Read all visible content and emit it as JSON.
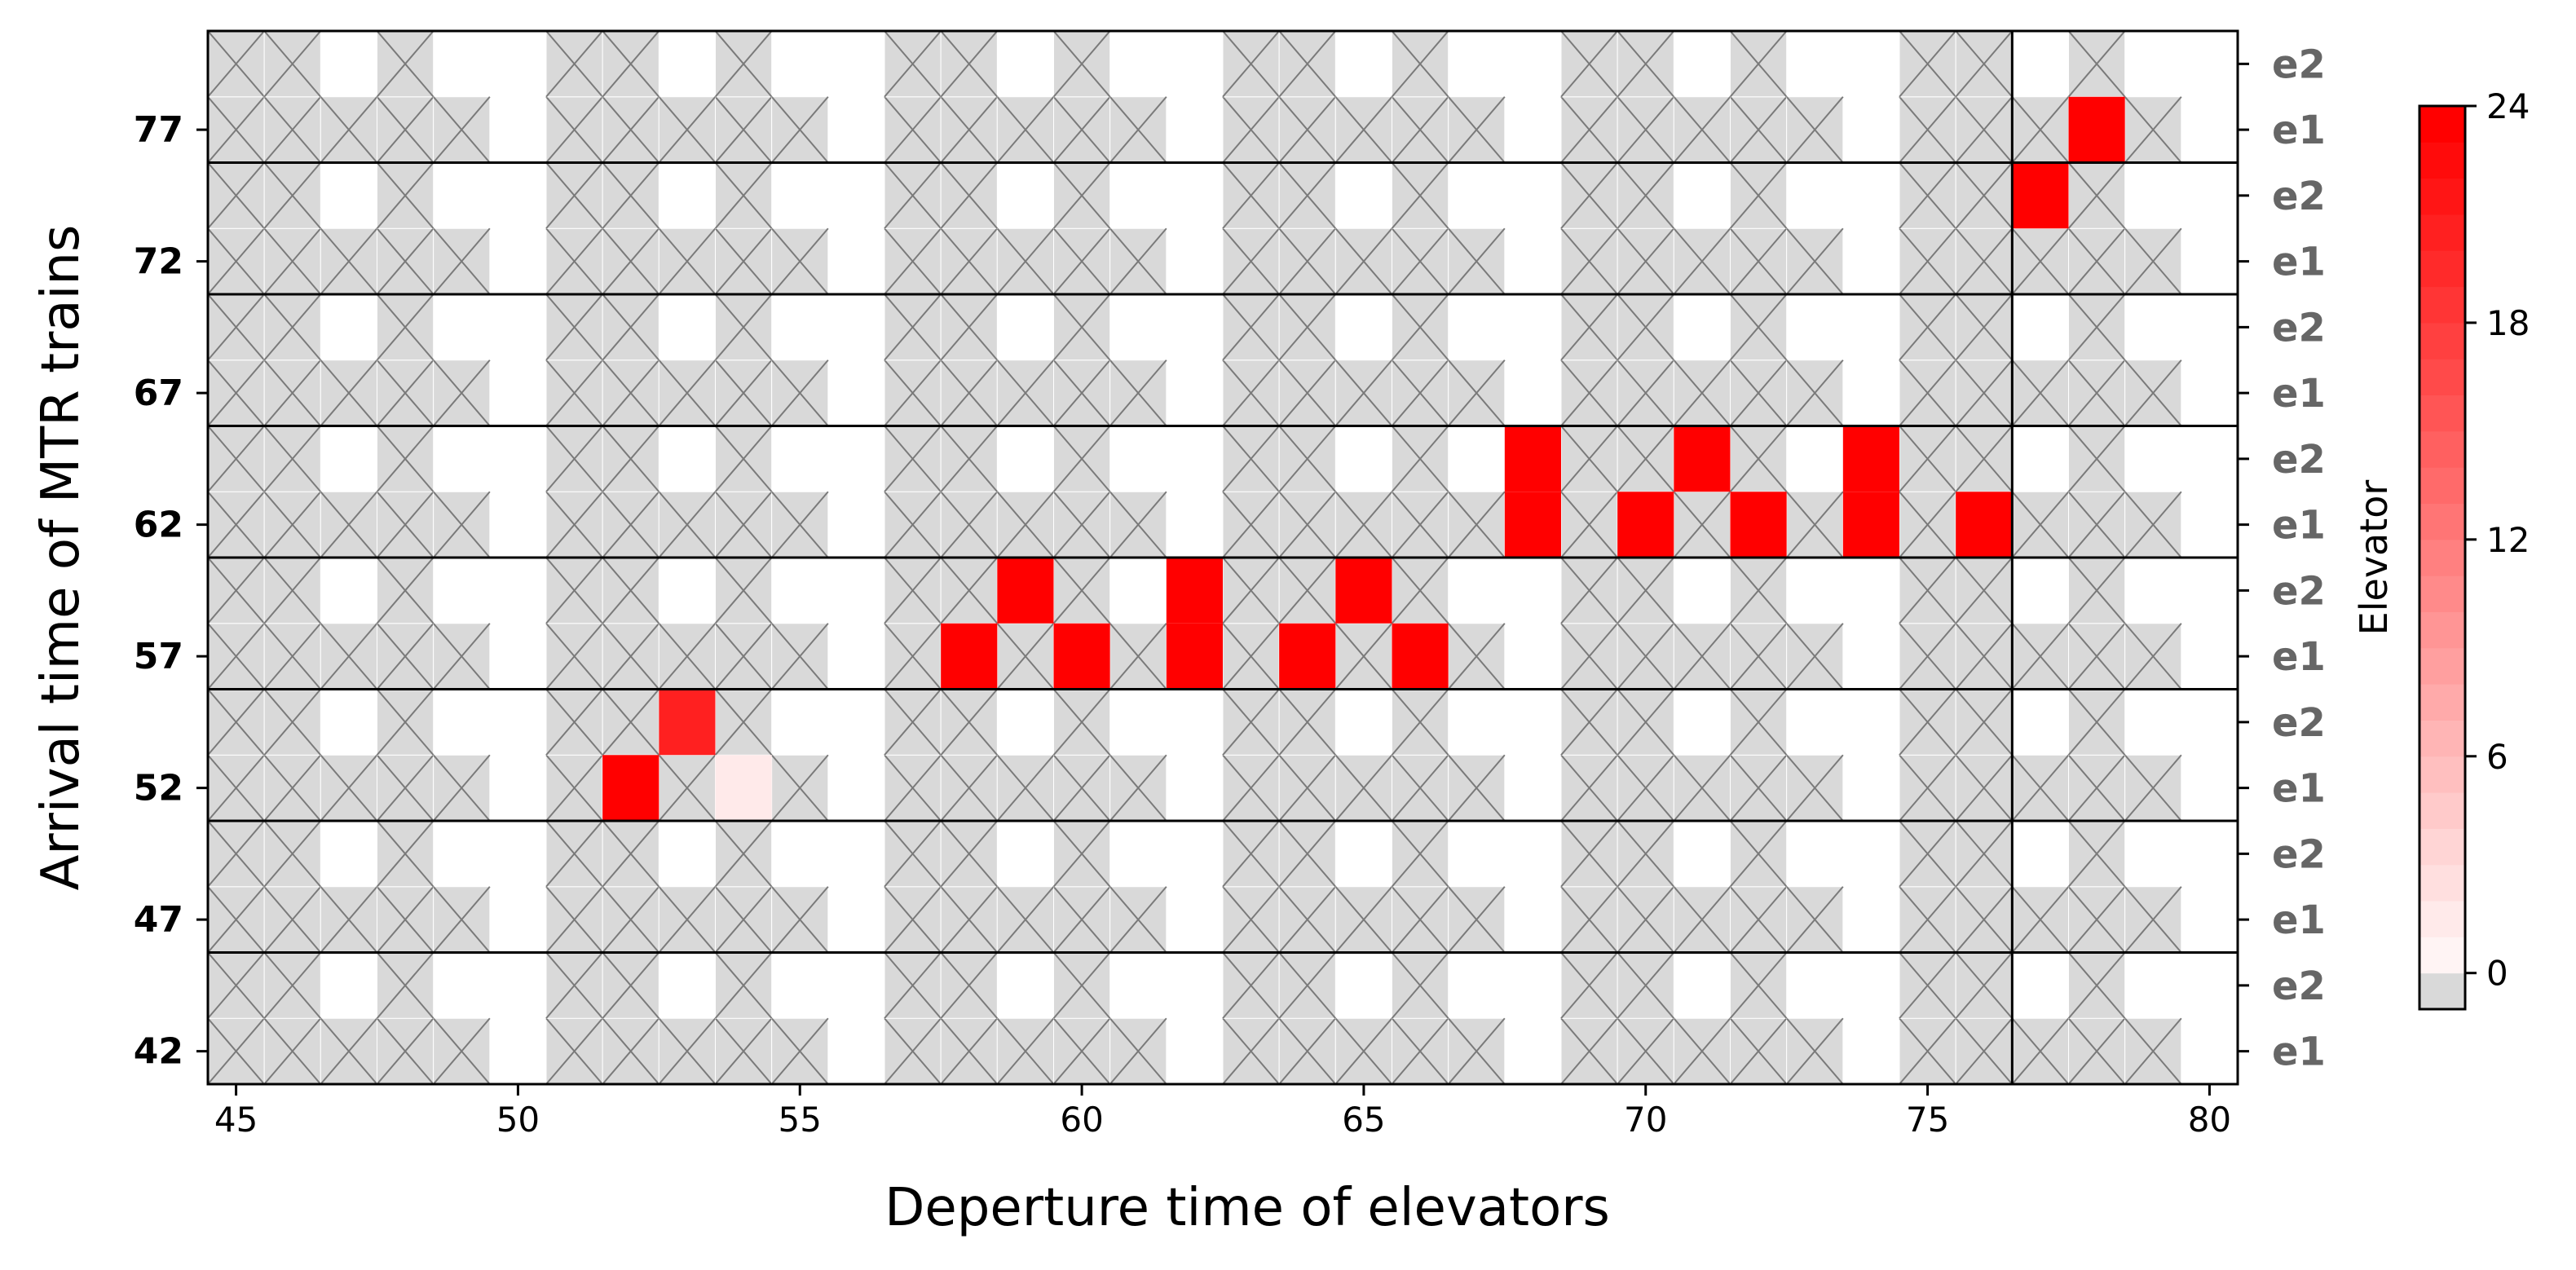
{
  "chart_data": {
    "type": "heatmap",
    "xlabel": "Deperture time of elevators",
    "ylabel": "Arrival time of MTR trains",
    "x_range": [
      44.5,
      80.5
    ],
    "x_ticks": [
      "45",
      "50",
      "55",
      "60",
      "65",
      "70",
      "75",
      "80"
    ],
    "x_tick_values": [
      45,
      50,
      55,
      60,
      65,
      70,
      75,
      80
    ],
    "train_arrivals": [
      "42",
      "47",
      "52",
      "57",
      "62",
      "67",
      "72",
      "77"
    ],
    "elevators": [
      "e1",
      "e2"
    ],
    "elevator_cycle": 6,
    "boundary_x": 76.5,
    "colorbar": {
      "title": "Elevator",
      "ticks": [
        "0",
        "6",
        "12",
        "18",
        "24"
      ],
      "tick_values": [
        0,
        6,
        12,
        18,
        24
      ],
      "min": -1,
      "max": 24,
      "infeasible_color": "#d9d9d9",
      "zero_color": "#ffffff",
      "max_color": "#ff0000"
    },
    "cells": [
      {
        "train": "52",
        "elevator": "e1",
        "time": 52,
        "value": 24
      },
      {
        "train": "52",
        "elevator": "e2",
        "time": 53,
        "value": 21
      },
      {
        "train": "52",
        "elevator": "e1",
        "time": 54,
        "value": 2
      },
      {
        "train": "57",
        "elevator": "e1",
        "time": 58,
        "value": 24
      },
      {
        "train": "57",
        "elevator": "e2",
        "time": 59,
        "value": 24
      },
      {
        "train": "57",
        "elevator": "e1",
        "time": 60,
        "value": 24
      },
      {
        "train": "57",
        "elevator": "e1",
        "time": 62,
        "value": 24
      },
      {
        "train": "57",
        "elevator": "e2",
        "time": 62,
        "value": 24
      },
      {
        "train": "57",
        "elevator": "e1",
        "time": 64,
        "value": 24
      },
      {
        "train": "57",
        "elevator": "e2",
        "time": 65,
        "value": 24
      },
      {
        "train": "57",
        "elevator": "e1",
        "time": 66,
        "value": 24
      },
      {
        "train": "62",
        "elevator": "e1",
        "time": 68,
        "value": 24
      },
      {
        "train": "62",
        "elevator": "e2",
        "time": 68,
        "value": 24
      },
      {
        "train": "62",
        "elevator": "e1",
        "time": 70,
        "value": 24
      },
      {
        "train": "62",
        "elevator": "e2",
        "time": 71,
        "value": 24
      },
      {
        "train": "62",
        "elevator": "e1",
        "time": 72,
        "value": 24
      },
      {
        "train": "62",
        "elevator": "e1",
        "time": 74,
        "value": 24
      },
      {
        "train": "62",
        "elevator": "e2",
        "time": 74,
        "value": 24
      },
      {
        "train": "62",
        "elevator": "e1",
        "time": 76,
        "value": 24
      },
      {
        "train": "72",
        "elevator": "e2",
        "time": 77,
        "value": 24
      },
      {
        "train": "77",
        "elevator": "e1",
        "time": 78,
        "value": 24
      }
    ]
  }
}
